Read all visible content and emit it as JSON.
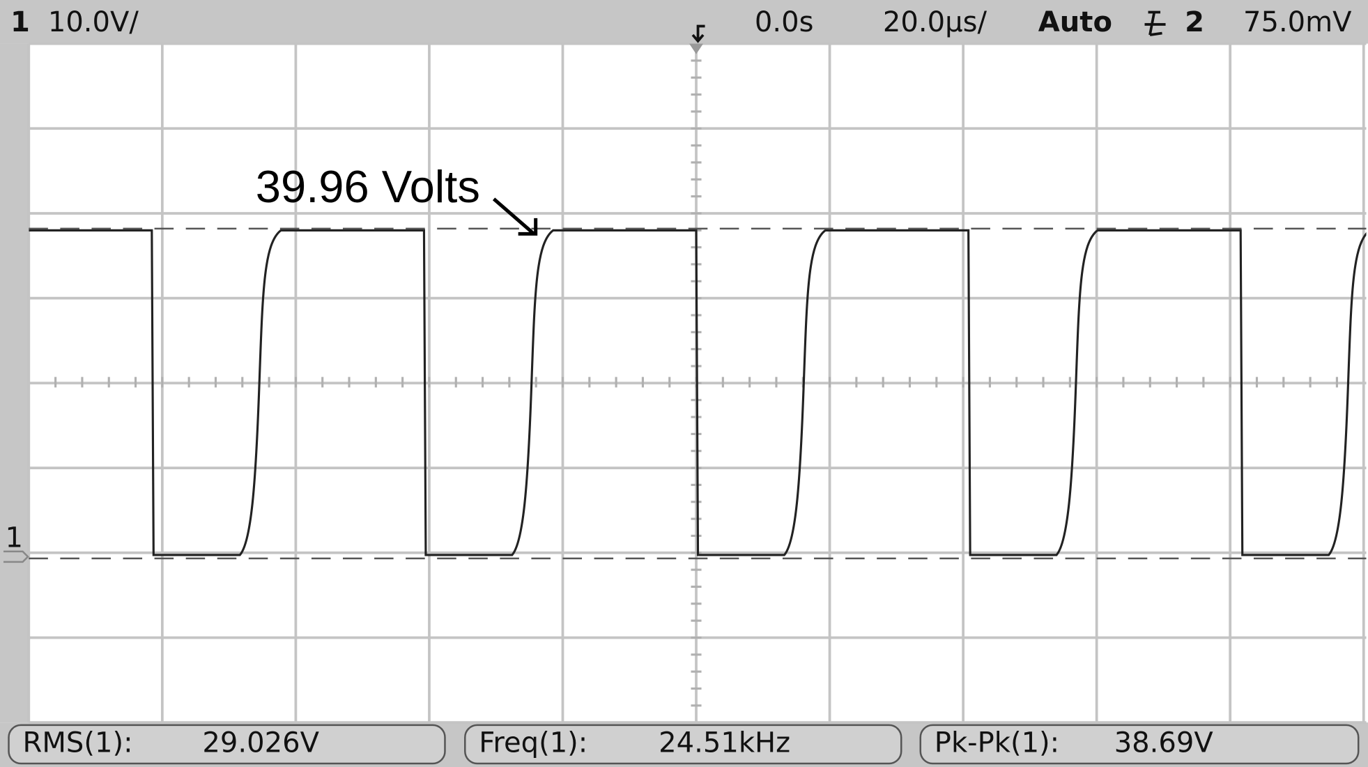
{
  "header": {
    "channel": "1",
    "scale": "10.0V/",
    "delay": "0.0s",
    "timebase": "20.0µs/",
    "mode": "Auto",
    "trigger_source": "2",
    "trigger_level": "75.0mV"
  },
  "annotation": "39.96 Volts",
  "ground_marker": "1",
  "measurements": [
    {
      "label": "RMS(1):",
      "value": "29.026V"
    },
    {
      "label": "Freq(1):",
      "value": "24.51kHz"
    },
    {
      "label": "Pk-Pk(1):",
      "value": "38.69V"
    }
  ]
}
